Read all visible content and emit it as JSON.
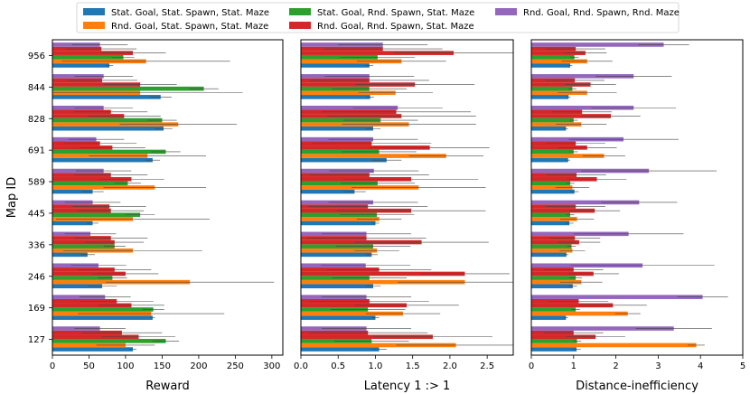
{
  "chart_data": {
    "type": "bar",
    "orientation": "horizontal",
    "ylabel": "Map ID",
    "categories": [
      "127",
      "169",
      "246",
      "336",
      "445",
      "589",
      "691",
      "828",
      "844",
      "956"
    ],
    "series_colors": [
      "#1f77b4",
      "#ff7f0e",
      "#2ca02c",
      "#d62728",
      "#d62728",
      "#9467bd"
    ],
    "legend": [
      "Stat. Goal, Stat. Spawn, Stat. Maze",
      "Rnd. Goal, Stat. Spawn, Stat. Maze",
      "Stat. Goal, Rnd. Spawn, Stat. Maze",
      "Rnd. Goal, Rnd. Spawn, Stat. Maze",
      "Rnd. Goal, Rnd. Spawn, Rnd. Maze"
    ],
    "legend_colors": [
      "#1f77b4",
      "#ff7f0e",
      "#2ca02c",
      "#d62728",
      "#9467bd"
    ],
    "panels": [
      {
        "xlabel": "Reward",
        "xlim": [
          0,
          315
        ],
        "ticks": [
          0,
          50,
          100,
          150,
          200,
          250,
          300
        ],
        "tick_labels": [
          "0",
          "50",
          "100",
          "150",
          "200",
          "250",
          "300"
        ],
        "series": [
          {
            "name": "Stat. Goal, Stat. Spawn, Stat. Maze",
            "values": [
              110,
              137,
              68,
              48,
              55,
              55,
              137,
              152,
              148,
              78
            ],
            "errors": [
              5,
              3,
              20,
              10,
              8,
              15,
              10,
              12,
              15,
              5
            ]
          },
          {
            "name": "Rnd. Goal, Stat. Spawn, Stat. Maze",
            "values": [
              100,
              135,
              188,
              110,
              110,
              140,
              130,
              172,
              120,
              128
            ],
            "errors": [
              40,
              100,
              115,
              95,
              105,
              70,
              80,
              80,
              140,
              115
            ]
          },
          {
            "name": "Stat. Goal, Rnd. Spawn, Stat. Maze",
            "values": [
              155,
              138,
              82,
              85,
              120,
              103,
              155,
              150,
              207,
              97
            ],
            "errors": [
              18,
              15,
              20,
              15,
              20,
              18,
              20,
              20,
              20,
              15
            ]
          },
          {
            "name": "Rnd. Goal, Rnd. Spawn, Stat. Maze",
            "values": [
              118,
              108,
              100,
              85,
              80,
              108,
              82,
              98,
              120,
              110
            ],
            "errors": [
              50,
              45,
              45,
              40,
              45,
              45,
              45,
              50,
              50,
              45
            ]
          },
          {
            "name": "Rnd. Goal, Rnd. Spawn, Stat. Maze (2)",
            "values": [
              95,
              88,
              85,
              80,
              78,
              80,
              65,
              80,
              68,
              67
            ],
            "errors": [
              55,
              50,
              50,
              50,
              50,
              50,
              50,
              50,
              48,
              48
            ]
          },
          {
            "name": "Rnd. Goal, Rnd. Spawn, Rnd. Maze",
            "values": [
              65,
              72,
              63,
              52,
              55,
              70,
              60,
              70,
              70,
              65
            ],
            "errors": [
              35,
              35,
              38,
              35,
              38,
              38,
              38,
              40,
              40,
              38
            ]
          }
        ]
      },
      {
        "xlabel": "Latency 1 :> 1",
        "xlim": [
          0,
          2.85
        ],
        "ticks": [
          0,
          0.5,
          1.0,
          1.5,
          2.0,
          2.5
        ],
        "tick_labels": [
          "0.0",
          "0.5",
          "1.0",
          "1.5",
          "2.0",
          "2.5"
        ],
        "series": [
          {
            "name": "Stat. Goal, Stat. Spawn, Stat. Maze",
            "values": [
              1.05,
              1.0,
              0.97,
              0.95,
              1.0,
              0.72,
              1.15,
              0.97,
              0.93,
              0.92
            ],
            "errors": [
              0.1,
              0.05,
              0.1,
              0.08,
              0.05,
              0.15,
              0.2,
              0.1,
              0.05,
              0.05
            ]
          },
          {
            "name": "Rnd. Goal, Stat. Spawn, Stat. Maze",
            "values": [
              2.08,
              1.37,
              2.2,
              1.02,
              1.05,
              1.58,
              1.95,
              1.45,
              1.27,
              1.35
            ],
            "errors": [
              0.8,
              0.5,
              0.9,
              0.3,
              0.3,
              0.9,
              0.5,
              0.9,
              0.5,
              0.6
            ]
          },
          {
            "name": "Stat. Goal, Rnd. Spawn, Stat. Maze",
            "values": [
              0.95,
              0.9,
              0.92,
              0.97,
              1.02,
              1.03,
              1.05,
              1.07,
              0.92,
              1.03
            ],
            "errors": [
              0.5,
              0.5,
              0.5,
              0.5,
              0.5,
              0.5,
              0.5,
              0.5,
              0.5,
              0.5
            ]
          },
          {
            "name": "Rnd. Goal, Rnd. Spawn, Stat. Maze",
            "values": [
              1.77,
              1.42,
              2.2,
              1.62,
              1.48,
              1.48,
              1.73,
              1.35,
              1.53,
              2.05
            ],
            "errors": [
              0.8,
              0.7,
              0.6,
              0.9,
              1.0,
              0.9,
              0.8,
              1.0,
              0.8,
              0.8
            ]
          },
          {
            "name": "Rnd. Goal, Rnd. Spawn, Stat. Maze (2)",
            "values": [
              0.9,
              0.92,
              1.05,
              0.88,
              0.9,
              0.92,
              0.95,
              1.28,
              0.92,
              1.1
            ],
            "errors": [
              0.8,
              0.8,
              0.7,
              0.8,
              0.8,
              0.8,
              0.8,
              1.0,
              0.8,
              0.8
            ]
          },
          {
            "name": "Rnd. Goal, Rnd. Spawn, Rnd. Maze",
            "values": [
              0.88,
              0.88,
              0.87,
              0.88,
              0.97,
              0.98,
              0.97,
              1.3,
              0.92,
              1.1
            ],
            "errors": [
              0.6,
              0.6,
              0.6,
              0.6,
              0.6,
              0.6,
              0.6,
              0.6,
              0.6,
              0.6
            ]
          }
        ]
      },
      {
        "xlabel": "Distance-inefficiency",
        "xlim": [
          0,
          5.0
        ],
        "ticks": [
          0,
          1,
          2,
          3,
          4,
          5
        ],
        "tick_labels": [
          "0",
          "1",
          "2",
          "3",
          "4",
          "5"
        ],
        "series": [
          {
            "name": "Stat. Goal, Stat. Spawn, Stat. Maze",
            "values": [
              1.07,
              0.82,
              0.98,
              0.83,
              0.9,
              1.02,
              0.87,
              0.82,
              0.88,
              0.92
            ],
            "errors": [
              0.1,
              0.05,
              0.1,
              0.05,
              0.1,
              0.1,
              0.05,
              0.05,
              0.05,
              0.05
            ]
          },
          {
            "name": "Rnd. Goal, Stat. Spawn, Stat. Maze",
            "values": [
              3.9,
              2.28,
              1.18,
              0.97,
              1.08,
              0.97,
              1.72,
              1.18,
              1.32,
              1.32
            ],
            "errors": [
              0.2,
              0.3,
              0.5,
              0.3,
              0.4,
              0.4,
              0.5,
              0.6,
              0.7,
              0.6
            ]
          },
          {
            "name": "Stat. Goal, Rnd. Spawn, Stat. Maze",
            "values": [
              1.08,
              1.05,
              1.05,
              0.95,
              0.92,
              0.92,
              1.0,
              1.0,
              0.97,
              1.02
            ],
            "errors": [
              0.1,
              0.1,
              0.15,
              0.1,
              0.1,
              0.1,
              0.1,
              0.1,
              0.1,
              0.1
            ]
          },
          {
            "name": "Rnd. Goal, Rnd. Spawn, Stat. Maze",
            "values": [
              1.52,
              1.93,
              1.47,
              1.13,
              1.5,
              1.55,
              1.32,
              1.88,
              1.4,
              1.28
            ],
            "errors": [
              0.7,
              0.8,
              0.6,
              0.5,
              0.6,
              0.7,
              0.7,
              0.7,
              0.6,
              0.5
            ]
          },
          {
            "name": "Rnd. Goal, Rnd. Spawn, Stat. Maze (2)",
            "values": [
              1.0,
              1.12,
              1.0,
              1.03,
              1.05,
              1.07,
              1.05,
              1.2,
              1.03,
              1.05
            ],
            "errors": [
              0.7,
              0.7,
              0.7,
              0.6,
              0.7,
              0.7,
              0.7,
              0.7,
              0.7,
              0.7
            ]
          },
          {
            "name": "Rnd. Goal, Rnd. Spawn, Rnd. Maze",
            "values": [
              3.37,
              4.05,
              2.63,
              2.3,
              2.55,
              2.78,
              2.18,
              2.42,
              2.42,
              3.13
            ],
            "errors": [
              0.9,
              0.6,
              1.7,
              1.3,
              0.9,
              1.6,
              1.3,
              1.0,
              0.9,
              0.6
            ]
          }
        ]
      }
    ]
  }
}
